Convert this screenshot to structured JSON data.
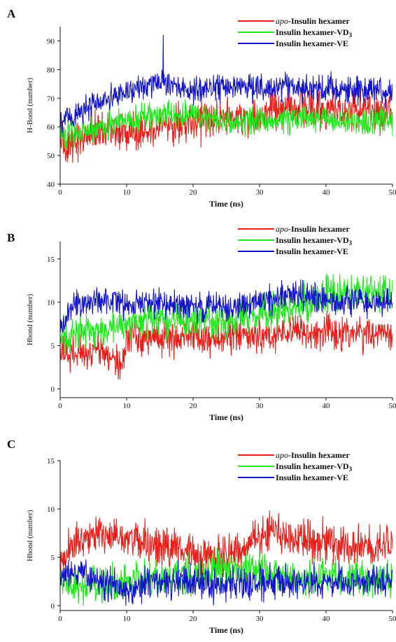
{
  "chart_data": [
    {
      "panel": "A",
      "type": "line",
      "xlabel": "Time (ns)",
      "ylabel": "H-Bond (number)",
      "xlim": [
        0,
        50
      ],
      "ylim": [
        40,
        95
      ],
      "xticks": [
        0,
        10,
        20,
        30,
        40,
        50
      ],
      "yticks": [
        40,
        50,
        60,
        70,
        80,
        90
      ],
      "legend_position": "top-right",
      "series": [
        {
          "name": "apo-Insulin hexamer",
          "name_prefix": "apo",
          "name_rest": "-Insulin hexamer",
          "color": "#e8201c",
          "noise": 5,
          "x": [
            0,
            1,
            3,
            6,
            10,
            15,
            20,
            25,
            30,
            35,
            40,
            45,
            50
          ],
          "y": [
            55,
            53,
            56,
            60,
            57,
            61,
            62,
            63,
            64,
            67,
            66,
            66,
            65
          ]
        },
        {
          "name": "Insulin hexamer-VD3",
          "name_main": "Insulin hexamer-VD",
          "name_sub": "3",
          "color": "#22e61e",
          "noise": 3.5,
          "x": [
            0,
            2,
            5,
            10,
            15,
            20,
            25,
            30,
            35,
            40,
            45,
            50
          ],
          "y": [
            57,
            58,
            60,
            62,
            64,
            64,
            62,
            62,
            63,
            63,
            62,
            62
          ]
        },
        {
          "name": "Insulin hexamer-VE",
          "name_main": "Insulin hexamer-VE",
          "color": "#1414c8",
          "noise": 3.5,
          "x": [
            0,
            2,
            5,
            10,
            15,
            20,
            25,
            30,
            35,
            40,
            45,
            50
          ],
          "y": [
            62,
            64,
            68,
            72,
            76,
            73,
            74,
            74,
            74,
            73,
            73,
            72
          ],
          "spike": {
            "x": 15.5,
            "y": 92
          }
        }
      ]
    },
    {
      "panel": "B",
      "type": "line",
      "xlabel": "Time (ns)",
      "ylabel": "Hbond (number)",
      "xlim": [
        0,
        50
      ],
      "ylim": [
        -1,
        17
      ],
      "xticks": [
        0,
        10,
        20,
        30,
        40,
        50
      ],
      "yticks": [
        0,
        5,
        10,
        15
      ],
      "legend_position": "top-right",
      "series": [
        {
          "name": "apo-Insulin hexamer",
          "name_prefix": "apo",
          "name_rest": "-Insulin hexamer",
          "color": "#e8201c",
          "noise": 1.5,
          "x": [
            0,
            2,
            5,
            8,
            9.5,
            10,
            15,
            20,
            25,
            30,
            35,
            40,
            45,
            50
          ],
          "y": [
            4,
            4,
            4.5,
            3.5,
            3,
            6,
            6,
            6,
            6,
            6,
            6.5,
            6.5,
            6.5,
            6.5
          ]
        },
        {
          "name": "Insulin hexamer-VD3",
          "name_main": "Insulin hexamer-VD",
          "name_sub": "3",
          "color": "#22e61e",
          "noise": 1.5,
          "x": [
            0,
            3,
            8,
            10,
            15,
            20,
            25,
            30,
            35,
            40,
            45,
            50
          ],
          "y": [
            6,
            6.5,
            7,
            7.5,
            8,
            8,
            8,
            8.5,
            9.5,
            11,
            11,
            11
          ]
        },
        {
          "name": "Insulin hexamer-VE",
          "name_main": "Insulin hexamer-VE",
          "color": "#1414c8",
          "noise": 1.2,
          "x": [
            0,
            2,
            8,
            10,
            15,
            20,
            25,
            30,
            35,
            40,
            45,
            50
          ],
          "y": [
            7,
            9.5,
            10.5,
            9.5,
            10,
            9.5,
            9.5,
            10,
            11,
            10,
            10,
            10
          ]
        }
      ]
    },
    {
      "panel": "C",
      "type": "line",
      "xlabel": "Time (ns)",
      "ylabel": "Hbond (number)",
      "xlim": [
        0,
        50
      ],
      "ylim": [
        -0.5,
        15
      ],
      "xticks": [
        0,
        10,
        20,
        30,
        40,
        50
      ],
      "yticks": [
        0,
        5,
        10,
        15
      ],
      "legend_position": "top-right",
      "series": [
        {
          "name": "apo-Insulin hexamer",
          "name_prefix": "apo",
          "name_rest": "-Insulin hexamer",
          "color": "#e8201c",
          "noise": 1.5,
          "x": [
            0,
            2,
            5,
            10,
            15,
            20,
            25,
            30,
            32,
            35,
            40,
            45,
            50
          ],
          "y": [
            4,
            6.5,
            7.5,
            7,
            6,
            5.5,
            5,
            7,
            8,
            7,
            6.5,
            6,
            6
          ]
        },
        {
          "name": "Insulin hexamer-VD3",
          "name_main": "Insulin hexamer-VD",
          "name_sub": "3",
          "color": "#22e61e",
          "noise": 1.4,
          "x": [
            0,
            2,
            5,
            10,
            15,
            20,
            25,
            30,
            35,
            40,
            45,
            50
          ],
          "y": [
            2.5,
            2,
            2,
            2.5,
            3,
            3,
            4,
            3.5,
            3,
            3,
            2.5,
            3
          ]
        },
        {
          "name": "Insulin hexamer-VE",
          "name_main": "Insulin hexamer-VE",
          "color": "#1414c8",
          "noise": 1.2,
          "x": [
            0,
            2,
            5,
            8,
            10,
            15,
            20,
            25,
            30,
            35,
            40,
            45,
            50
          ],
          "y": [
            3,
            3.5,
            3,
            2,
            1.5,
            2.5,
            2.5,
            2,
            2.5,
            2.5,
            2.5,
            2.5,
            2.5
          ]
        }
      ]
    }
  ]
}
